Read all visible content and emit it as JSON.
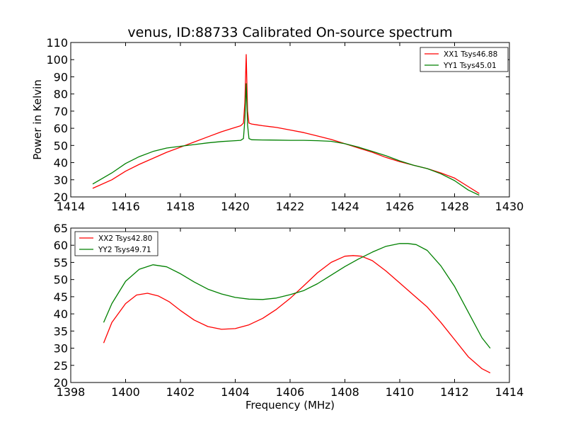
{
  "title": "venus, ID:88733 Calibrated On-source spectrum",
  "colors": {
    "xx": "#ff0000",
    "yy": "#008000"
  },
  "chart_data": [
    {
      "type": "line",
      "title": "venus, ID:88733 Calibrated On-source spectrum",
      "xlabel": "",
      "ylabel": "Power in Kelvin",
      "xlim": [
        1414,
        1430
      ],
      "ylim": [
        20,
        110
      ],
      "xticks": [
        "1414",
        "1416",
        "1418",
        "1420",
        "1422",
        "1424",
        "1426",
        "1428",
        "1430"
      ],
      "yticks": [
        "20",
        "30",
        "40",
        "50",
        "60",
        "70",
        "80",
        "90",
        "100",
        "110"
      ],
      "grid": false,
      "legend_position": "top-right",
      "series": [
        {
          "name": "XX1 Tsys46.88",
          "color": "#ff0000",
          "x": [
            1414.8,
            1415.5,
            1416.0,
            1416.5,
            1417.0,
            1417.5,
            1418.0,
            1418.5,
            1419.0,
            1419.5,
            1419.9,
            1420.2,
            1420.3,
            1420.35,
            1420.4,
            1420.45,
            1420.5,
            1420.6,
            1420.8,
            1421.0,
            1421.5,
            1422.0,
            1422.5,
            1423.0,
            1423.5,
            1424.0,
            1424.5,
            1425.0,
            1425.5,
            1426.0,
            1426.5,
            1427.0,
            1427.5,
            1428.0,
            1428.5,
            1428.9
          ],
          "y": [
            25,
            30,
            35,
            39,
            42.5,
            46,
            49,
            52,
            55,
            58,
            60,
            61.5,
            63,
            75,
            103,
            70,
            63,
            62.5,
            62,
            61.5,
            60.5,
            59,
            57.5,
            55.5,
            53.5,
            51,
            48.5,
            46,
            43,
            40.5,
            38.5,
            36.5,
            34,
            31,
            26,
            22
          ]
        },
        {
          "name": "YY1 Tsys45.01",
          "color": "#008000",
          "x": [
            1414.8,
            1415.5,
            1416.0,
            1416.5,
            1417.0,
            1417.5,
            1418.0,
            1418.5,
            1419.0,
            1419.5,
            1420.0,
            1420.2,
            1420.3,
            1420.35,
            1420.4,
            1420.45,
            1420.5,
            1420.6,
            1421.0,
            1421.5,
            1422.0,
            1422.5,
            1423.0,
            1423.5,
            1424.0,
            1424.5,
            1425.0,
            1425.5,
            1426.0,
            1426.5,
            1427.0,
            1427.5,
            1428.0,
            1428.5,
            1428.9
          ],
          "y": [
            27.5,
            34,
            39.5,
            43.5,
            46.5,
            48.5,
            49.5,
            50.5,
            51.5,
            52.3,
            52.8,
            53,
            54,
            65,
            86,
            62,
            54,
            53.3,
            53.2,
            53.1,
            53,
            53,
            52.8,
            52.4,
            51,
            49,
            46.5,
            44,
            41,
            38.5,
            36.5,
            33.5,
            29.5,
            24,
            21
          ]
        }
      ]
    },
    {
      "type": "line",
      "title": "",
      "xlabel": "Frequency (MHz)",
      "ylabel": "",
      "xlim": [
        1398,
        1414
      ],
      "ylim": [
        20,
        65
      ],
      "xticks": [
        "1398",
        "1400",
        "1402",
        "1404",
        "1406",
        "1408",
        "1410",
        "1412",
        "1414"
      ],
      "yticks": [
        "20",
        "25",
        "30",
        "35",
        "40",
        "45",
        "50",
        "55",
        "60",
        "65"
      ],
      "grid": false,
      "legend_position": "top-left",
      "series": [
        {
          "name": "XX2 Tsys42.80",
          "color": "#ff0000",
          "x": [
            1399.2,
            1399.5,
            1400.0,
            1400.4,
            1400.8,
            1401.2,
            1401.6,
            1402.0,
            1402.5,
            1403.0,
            1403.5,
            1404.0,
            1404.5,
            1405.0,
            1405.5,
            1406.0,
            1406.5,
            1407.0,
            1407.5,
            1408.0,
            1408.3,
            1408.6,
            1409.0,
            1409.5,
            1410.0,
            1410.5,
            1411.0,
            1411.5,
            1412.0,
            1412.5,
            1413.0,
            1413.3
          ],
          "y": [
            31.5,
            37.5,
            43,
            45.5,
            46,
            45.2,
            43.5,
            41,
            38.2,
            36.3,
            35.5,
            35.7,
            36.8,
            38.7,
            41.3,
            44.5,
            48.2,
            52,
            55,
            56.8,
            57,
            56.8,
            55.5,
            52.5,
            49,
            45.5,
            42,
            37.5,
            32.5,
            27.5,
            24,
            22.8
          ]
        },
        {
          "name": "YY2 Tsys49.71",
          "color": "#008000",
          "x": [
            1399.2,
            1399.5,
            1400.0,
            1400.5,
            1401.0,
            1401.5,
            1402.0,
            1402.5,
            1403.0,
            1403.5,
            1404.0,
            1404.5,
            1405.0,
            1405.5,
            1406.0,
            1406.5,
            1407.0,
            1407.5,
            1408.0,
            1408.5,
            1409.0,
            1409.5,
            1410.0,
            1410.3,
            1410.6,
            1411.0,
            1411.5,
            1412.0,
            1412.5,
            1413.0,
            1413.3
          ],
          "y": [
            37.5,
            43,
            49.5,
            53,
            54.3,
            53.7,
            51.7,
            49.3,
            47.2,
            45.8,
            44.8,
            44.3,
            44.2,
            44.6,
            45.6,
            46.8,
            48.8,
            51.3,
            53.8,
            56,
            58,
            59.7,
            60.5,
            60.5,
            60.2,
            58.5,
            54,
            48,
            40.5,
            33,
            30
          ]
        }
      ]
    }
  ]
}
